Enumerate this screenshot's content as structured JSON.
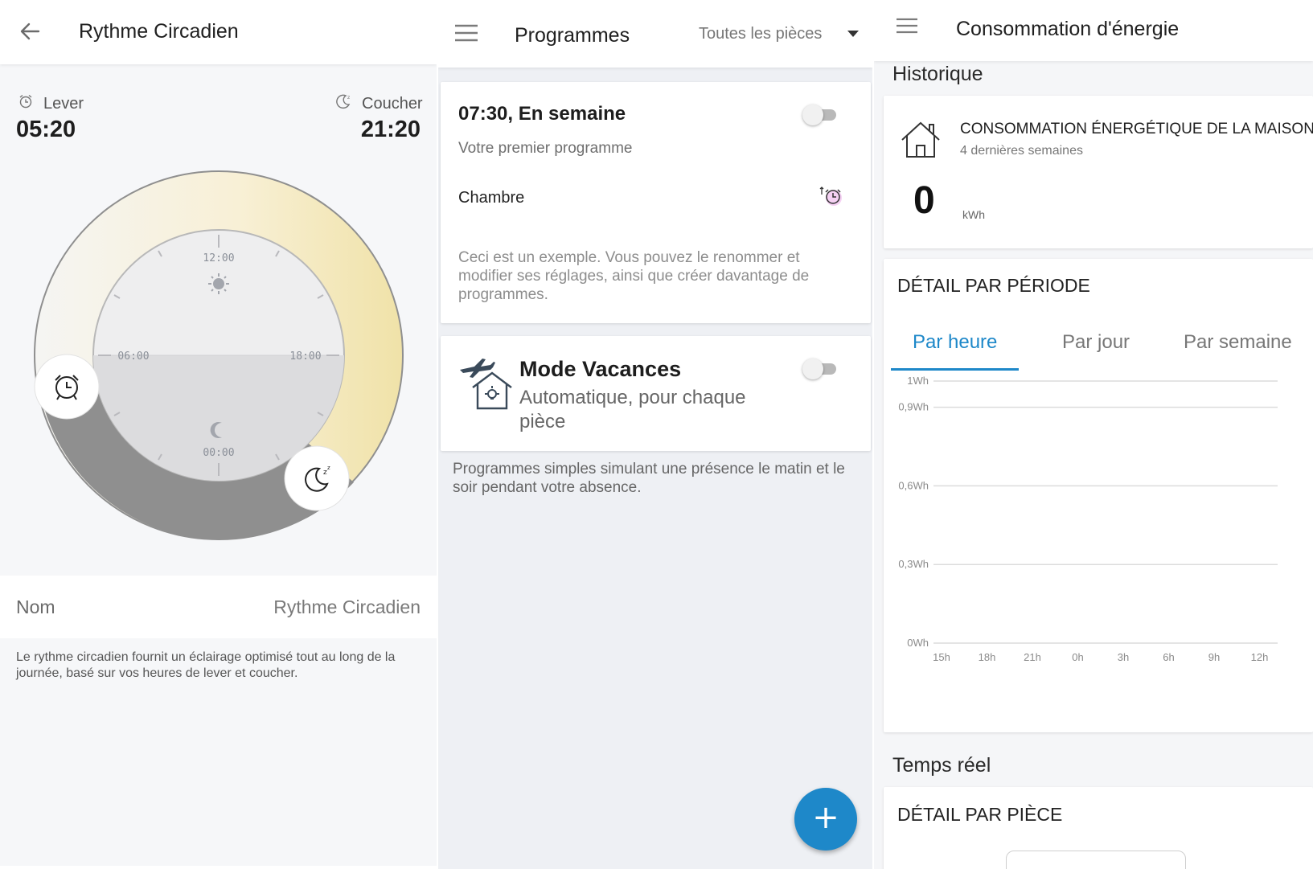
{
  "circadian": {
    "title": "Rythme Circadien",
    "wake_label": "Lever",
    "wake_time": "05:20",
    "sleep_label": "Coucher",
    "sleep_time": "21:20",
    "dial": {
      "t12": "12:00",
      "t06": "06:00",
      "t18": "18:00",
      "t00": "00:00"
    },
    "name_key": "Nom",
    "name_value": "Rythme Circadien",
    "description": "Le rythme circadien fournit un éclairage optimisé tout au long de la journée, basé sur vos heures de lever et coucher.",
    "icons": [
      "back-arrow-icon",
      "alarm-clock-icon",
      "moon-sleep-icon",
      "sun-icon",
      "moon-icon"
    ]
  },
  "programmes": {
    "title": "Programmes",
    "filter": "Toutes les pièces",
    "card1": {
      "time_title": "07:30, En semaine",
      "subtitle": "Votre premier programme",
      "room": "Chambre",
      "note": "Ceci est un exemple. Vous pouvez le renommer et modifier ses réglages, ainsi que créer davantage de programmes.",
      "enabled": false
    },
    "card2": {
      "title": "Mode Vacances",
      "subtitle": "Automatique, pour chaque pièce",
      "enabled": false
    },
    "vacation_note": "Programmes simples simulant une présence le matin et le soir pendant votre absence.",
    "fab_label": "+",
    "icons": [
      "menu-icon",
      "dropdown-arrow-icon",
      "wake-alarm-icon",
      "plane-house-icon",
      "add-icon"
    ]
  },
  "energy": {
    "title": "Consommation d'énergie",
    "history_title": "Historique",
    "home_card": {
      "title": "CONSOMMATION ÉNERGÉTIQUE DE LA MAISON",
      "subtitle": "4 dernières semaines",
      "value": "0",
      "unit": "kWh"
    },
    "period_title": "DÉTAIL PAR PÉRIODE",
    "tabs": [
      "Par heure",
      "Par jour",
      "Par semaine"
    ],
    "active_tab": "Par heure",
    "realtime_title": "Temps réel",
    "room_detail_title": "DÉTAIL PAR PIÈCE",
    "accent": "#1e88c9",
    "icons": [
      "menu-icon",
      "house-icon"
    ]
  },
  "chart_data": {
    "type": "line",
    "x": [
      "15h",
      "18h",
      "21h",
      "0h",
      "3h",
      "6h",
      "9h",
      "12h"
    ],
    "y_ticks": [
      "0Wh",
      "0,3Wh",
      "0,6Wh",
      "0,9Wh",
      "1Wh"
    ],
    "y_tick_values": [
      0,
      0.3,
      0.6,
      0.9,
      1
    ],
    "ylim": [
      0,
      1
    ],
    "series": [],
    "grid": true
  }
}
